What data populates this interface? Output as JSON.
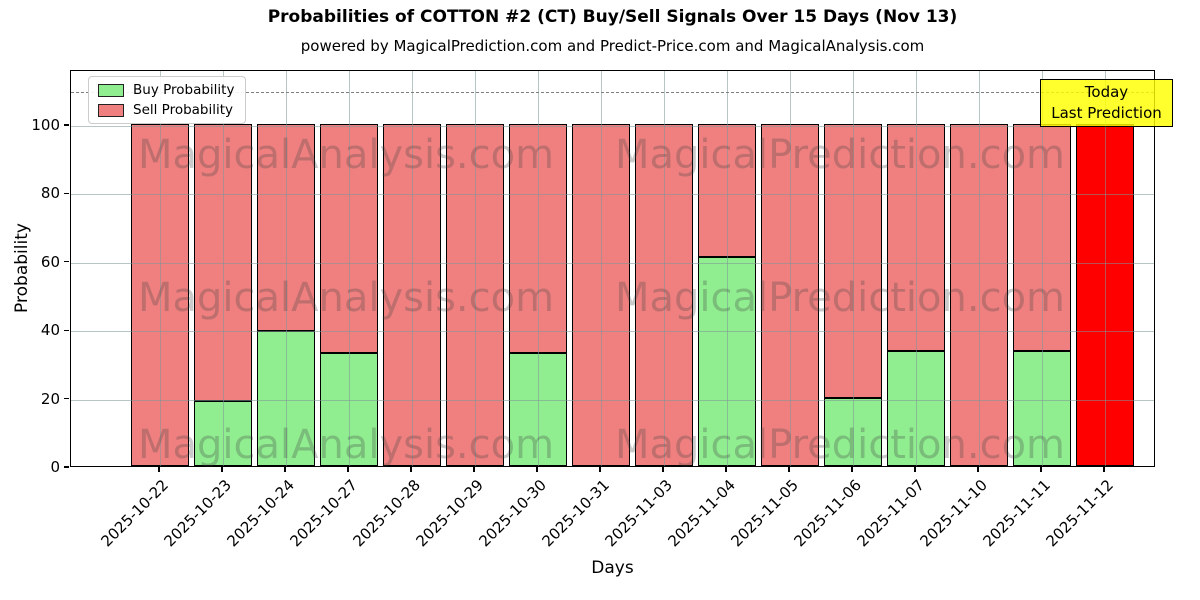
{
  "title": "Probabilities of COTTON #2 (CT) Buy/Sell Signals Over 15 Days (Nov 13)",
  "subtitle": "powered by MagicalPrediction.com and Predict-Price.com and MagicalAnalysis.com",
  "watermark": {
    "left_text": "MagicalAnalysis.com",
    "right_text": "MagicalPrediction.com"
  },
  "legend": {
    "items": [
      {
        "label": "Buy Probability",
        "color": "#90ee90"
      },
      {
        "label": "Sell Probability",
        "color": "#f08080"
      }
    ]
  },
  "today_box": {
    "line1": "Today",
    "line2": "Last Prediction",
    "bg_color": "#ffff00"
  },
  "axes": {
    "ylabel": "Probability",
    "xlabel": "Days",
    "yticks": [
      0,
      20,
      40,
      60,
      80,
      100
    ]
  },
  "chart_data": {
    "type": "bar",
    "stacked": true,
    "title": "Probabilities of COTTON #2 (CT) Buy/Sell Signals Over 15 Days (Nov 13)",
    "xlabel": "Days",
    "ylabel": "Probability",
    "ylim": [
      0,
      115
    ],
    "dashed_guide_y": 110,
    "grid": true,
    "legend_position": "upper left",
    "categories": [
      "2025-10-22",
      "2025-10-23",
      "2025-10-24",
      "2025-10-27",
      "2025-10-28",
      "2025-10-29",
      "2025-10-30",
      "2025-10-31",
      "2025-11-03",
      "2025-11-04",
      "2025-11-05",
      "2025-11-06",
      "2025-11-07",
      "2025-11-10",
      "2025-11-11",
      "2025-11-12"
    ],
    "series": [
      {
        "name": "Buy Probability",
        "color": "#90ee90",
        "values": [
          0,
          19,
          39.5,
          33,
          0,
          0,
          33,
          0,
          0,
          61,
          0,
          20,
          33.5,
          0,
          33.5,
          0
        ]
      },
      {
        "name": "Sell Probability",
        "color": "#f08080",
        "values": [
          100,
          81,
          60.5,
          67,
          100,
          100,
          67,
          100,
          100,
          39,
          100,
          80,
          66.5,
          100,
          66.5,
          100
        ]
      }
    ],
    "highlight": {
      "category": "2025-11-12",
      "color": "#ff0000",
      "value": 100,
      "note": "Today / Last Prediction"
    }
  }
}
